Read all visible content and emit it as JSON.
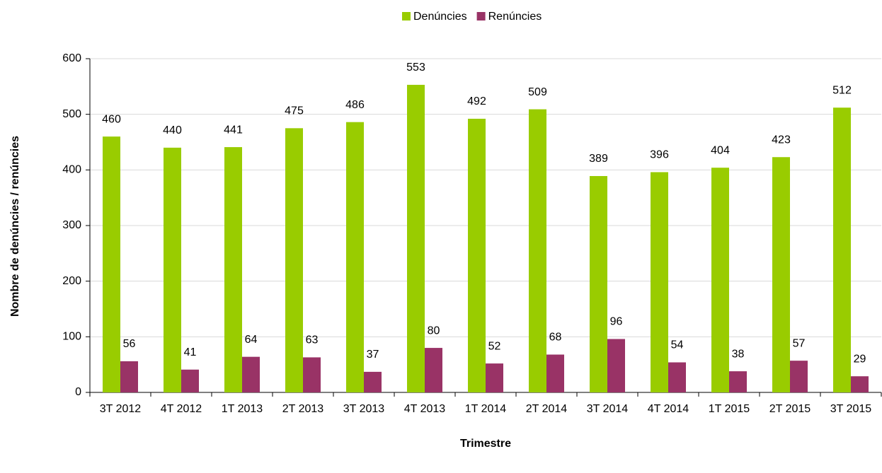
{
  "chart_data": {
    "type": "bar",
    "x_label": "Trimestre",
    "y_label": "Nombre de denúncies / renúncies",
    "categories": [
      "3T 2012",
      "4T 2012",
      "1T 2013",
      "2T 2013",
      "3T 2013",
      "4T 2013",
      "1T 2014",
      "2T 2014",
      "3T 2014",
      "4T 2014",
      "1T 2015",
      "2T 2015",
      "3T 2015"
    ],
    "series": [
      {
        "name": "Denúncies",
        "color": "#99cc00",
        "values": [
          460,
          440,
          441,
          475,
          486,
          553,
          492,
          509,
          389,
          396,
          404,
          423,
          512
        ]
      },
      {
        "name": "Renúncies",
        "color": "#993366",
        "values": [
          56,
          41,
          64,
          63,
          37,
          80,
          52,
          68,
          96,
          54,
          38,
          57,
          29
        ]
      }
    ],
    "ylim": [
      0,
      600
    ],
    "yticks": [
      0,
      100,
      200,
      300,
      400,
      500,
      600
    ],
    "grid": true,
    "legend": "top"
  }
}
